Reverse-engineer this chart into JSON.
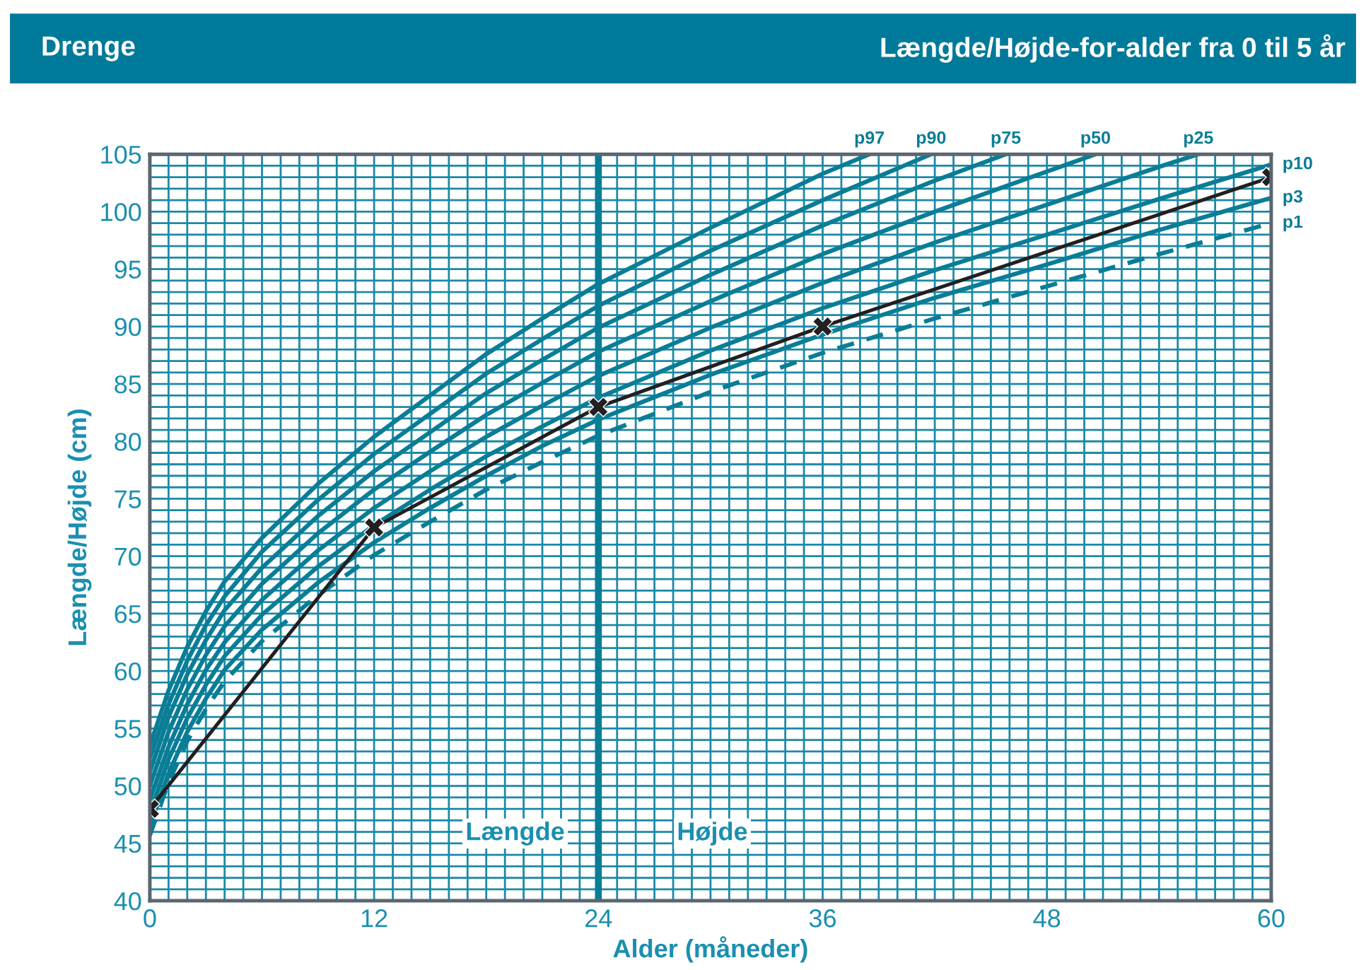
{
  "chart_data": {
    "type": "line",
    "title": "Længde/Højde-for-alder fra 0 til 5 år",
    "subtitle": "Drenge",
    "xlabel": "Alder (måneder)",
    "ylabel": "Længde/Højde (cm)",
    "xlim": [
      0,
      60
    ],
    "ylim": [
      40,
      105
    ],
    "xticks": [
      0,
      {
        "value": 1,
        "label": null
      },
      {
        "value": 2,
        "label": null
      },
      {
        "value": 3,
        "label": null
      },
      {
        "value": 4,
        "label": null
      },
      {
        "value": 5,
        "label": null
      },
      {
        "value": 6,
        "label": null
      },
      {
        "value": 7,
        "label": null
      },
      {
        "value": 8,
        "label": null
      },
      {
        "value": 9,
        "label": null
      },
      {
        "value": 10,
        "label": null
      },
      {
        "value": 11,
        "label": null
      },
      12,
      {
        "value": 13,
        "label": null
      },
      {
        "value": 14,
        "label": null
      },
      {
        "value": 15,
        "label": null
      },
      {
        "value": 16,
        "label": null
      },
      {
        "value": 17,
        "label": null
      },
      {
        "value": 18,
        "label": null
      },
      {
        "value": 19,
        "label": null
      },
      {
        "value": 20,
        "label": null
      },
      {
        "value": 21,
        "label": null
      },
      {
        "value": 22,
        "label": null
      },
      {
        "value": 23,
        "label": null
      },
      24,
      {
        "value": 25,
        "label": null
      },
      {
        "value": 26,
        "label": null
      },
      {
        "value": 27,
        "label": null
      },
      {
        "value": 28,
        "label": null
      },
      {
        "value": 29,
        "label": null
      },
      {
        "value": 30,
        "label": null
      },
      {
        "value": 31,
        "label": null
      },
      {
        "value": 32,
        "label": null
      },
      {
        "value": 33,
        "label": null
      },
      {
        "value": 34,
        "label": null
      },
      {
        "value": 35,
        "label": null
      },
      36,
      {
        "value": 37,
        "label": null
      },
      {
        "value": 38,
        "label": null
      },
      {
        "value": 39,
        "label": null
      },
      {
        "value": 40,
        "label": null
      },
      {
        "value": 41,
        "label": null
      },
      {
        "value": 42,
        "label": null
      },
      {
        "value": 43,
        "label": null
      },
      {
        "value": 44,
        "label": null
      },
      {
        "value": 45,
        "label": null
      },
      {
        "value": 46,
        "label": null
      },
      {
        "value": 47,
        "label": null
      },
      48,
      {
        "value": 49,
        "label": null
      },
      {
        "value": 50,
        "label": null
      },
      {
        "value": 51,
        "label": null
      },
      {
        "value": 52,
        "label": null
      },
      {
        "value": 53,
        "label": null
      },
      {
        "value": 54,
        "label": null
      },
      {
        "value": 55,
        "label": null
      },
      {
        "value": 56,
        "label": null
      },
      {
        "value": 57,
        "label": null
      },
      {
        "value": 58,
        "label": null
      },
      {
        "value": 59,
        "label": null
      },
      60
    ],
    "yticks": [
      40,
      {
        "value": 41,
        "label": null
      },
      {
        "value": 42,
        "label": null
      },
      {
        "value": 43,
        "label": null
      },
      {
        "value": 44,
        "label": null
      },
      45,
      {
        "value": 46,
        "label": null
      },
      {
        "value": 47,
        "label": null
      },
      {
        "value": 48,
        "label": null
      },
      {
        "value": 49,
        "label": null
      },
      50,
      {
        "value": 51,
        "label": null
      },
      {
        "value": 52,
        "label": null
      },
      {
        "value": 53,
        "label": null
      },
      {
        "value": 54,
        "label": null
      },
      55,
      {
        "value": 56,
        "label": null
      },
      {
        "value": 57,
        "label": null
      },
      {
        "value": 58,
        "label": null
      },
      {
        "value": 59,
        "label": null
      },
      60,
      {
        "value": 61,
        "label": null
      },
      {
        "value": 62,
        "label": null
      },
      {
        "value": 63,
        "label": null
      },
      {
        "value": 64,
        "label": null
      },
      65,
      {
        "value": 66,
        "label": null
      },
      {
        "value": 67,
        "label": null
      },
      {
        "value": 68,
        "label": null
      },
      {
        "value": 69,
        "label": null
      },
      70,
      {
        "value": 71,
        "label": null
      },
      {
        "value": 72,
        "label": null
      },
      {
        "value": 73,
        "label": null
      },
      {
        "value": 74,
        "label": null
      },
      75,
      {
        "value": 76,
        "label": null
      },
      {
        "value": 77,
        "label": null
      },
      {
        "value": 78,
        "label": null
      },
      {
        "value": 79,
        "label": null
      },
      80,
      {
        "value": 81,
        "label": null
      },
      {
        "value": 82,
        "label": null
      },
      {
        "value": 83,
        "label": null
      },
      {
        "value": 84,
        "label": null
      },
      85,
      {
        "value": 86,
        "label": null
      },
      {
        "value": 87,
        "label": null
      },
      {
        "value": 88,
        "label": null
      },
      {
        "value": 89,
        "label": null
      },
      90,
      {
        "value": 91,
        "label": null
      },
      {
        "value": 92,
        "label": null
      },
      {
        "value": 93,
        "label": null
      },
      {
        "value": 94,
        "label": null
      },
      95,
      {
        "value": 96,
        "label": null
      },
      {
        "value": 97,
        "label": null
      },
      {
        "value": 98,
        "label": null
      },
      {
        "value": 99,
        "label": null
      },
      100,
      {
        "value": 101,
        "label": null
      },
      {
        "value": 102,
        "label": null
      },
      {
        "value": 103,
        "label": null
      },
      {
        "value": 104,
        "label": null
      },
      105
    ],
    "grid": true,
    "ref_lines": [
      {
        "axis": "x",
        "value": 24,
        "color": "#0a7d96"
      }
    ],
    "annotations": [
      "Længde",
      "Højde"
    ],
    "series": [
      {
        "name": "p97",
        "color": "#0a7d96",
        "x": [
          0,
          1,
          2,
          3,
          4,
          6,
          9,
          12,
          15,
          18,
          21,
          24,
          30,
          36,
          38.5
        ],
        "values": [
          53.5,
          58.3,
          62.1,
          65.2,
          67.8,
          71.6,
          76.3,
          80.4,
          84.0,
          87.6,
          90.7,
          93.7,
          98.6,
          103.3,
          105
        ]
      },
      {
        "name": "p90",
        "color": "#0a7d96",
        "x": [
          0,
          1,
          2,
          3,
          4,
          6,
          9,
          12,
          15,
          18,
          21,
          24,
          30,
          36,
          41.8
        ],
        "values": [
          52.4,
          57.1,
          60.9,
          64.0,
          66.5,
          70.4,
          74.9,
          78.9,
          82.4,
          85.9,
          88.9,
          91.8,
          96.6,
          101.0,
          105
        ]
      },
      {
        "name": "p75",
        "color": "#0a7d96",
        "x": [
          0,
          1,
          2,
          3,
          4,
          6,
          9,
          12,
          15,
          18,
          21,
          24,
          30,
          36,
          42,
          45.8
        ],
        "values": [
          51.2,
          56.0,
          59.7,
          62.7,
          65.3,
          69.0,
          73.5,
          77.4,
          80.8,
          84.2,
          87.1,
          89.9,
          94.5,
          98.8,
          102.7,
          105
        ]
      },
      {
        "name": "p50",
        "color": "#0a7d96",
        "x": [
          0,
          1,
          2,
          3,
          4,
          6,
          9,
          12,
          15,
          18,
          21,
          24,
          30,
          36,
          42,
          48,
          50.6
        ],
        "values": [
          50.0,
          54.7,
          58.4,
          61.4,
          63.9,
          67.6,
          72.0,
          75.8,
          79.1,
          82.3,
          85.1,
          87.8,
          92.2,
          96.3,
          100.0,
          103.5,
          105
        ]
      },
      {
        "name": "p25",
        "color": "#0a7d96",
        "x": [
          0,
          1,
          2,
          3,
          4,
          6,
          9,
          12,
          15,
          18,
          21,
          24,
          30,
          36,
          42,
          48,
          54,
          56.1
        ],
        "values": [
          48.8,
          53.4,
          57.1,
          60.1,
          62.5,
          66.2,
          70.5,
          74.2,
          77.4,
          80.4,
          83.1,
          85.7,
          89.9,
          93.8,
          97.3,
          100.6,
          103.9,
          105
        ]
      },
      {
        "name": "p10",
        "color": "#0a7d96",
        "x": [
          0,
          1,
          2,
          3,
          4,
          6,
          9,
          12,
          15,
          18,
          21,
          24,
          30,
          36,
          42,
          48,
          54,
          60
        ],
        "values": [
          47.6,
          52.3,
          55.9,
          58.8,
          61.3,
          64.9,
          69.1,
          72.7,
          75.8,
          78.7,
          81.3,
          83.8,
          87.9,
          91.6,
          94.9,
          98.0,
          101.1,
          104.1
        ]
      },
      {
        "name": "p3",
        "color": "#0a7d96",
        "x": [
          0,
          1,
          2,
          3,
          4,
          6,
          9,
          12,
          15,
          18,
          21,
          24,
          30,
          36,
          42,
          48,
          54,
          60
        ],
        "values": [
          46.5,
          51.1,
          54.7,
          57.6,
          60.1,
          63.6,
          67.7,
          71.2,
          74.2,
          77.0,
          79.6,
          81.9,
          85.8,
          89.3,
          92.5,
          95.4,
          98.4,
          101.2
        ]
      },
      {
        "name": "p1",
        "color": "#0a7d96",
        "line_style": "dashed",
        "x": [
          0,
          1,
          2,
          3,
          4,
          6,
          9,
          12,
          15,
          18,
          21,
          24,
          30,
          36,
          42,
          48,
          54,
          60
        ],
        "values": [
          45.7,
          50.3,
          53.9,
          56.7,
          59.1,
          62.6,
          66.6,
          70.1,
          73.0,
          75.8,
          78.2,
          80.5,
          84.3,
          87.7,
          90.7,
          93.5,
          96.3,
          99.0
        ]
      },
      {
        "color": "#231f20",
        "marker": "cross",
        "x": [
          0,
          12,
          24,
          36,
          60
        ],
        "values": [
          48,
          72.5,
          83,
          90,
          103
        ]
      }
    ]
  }
}
